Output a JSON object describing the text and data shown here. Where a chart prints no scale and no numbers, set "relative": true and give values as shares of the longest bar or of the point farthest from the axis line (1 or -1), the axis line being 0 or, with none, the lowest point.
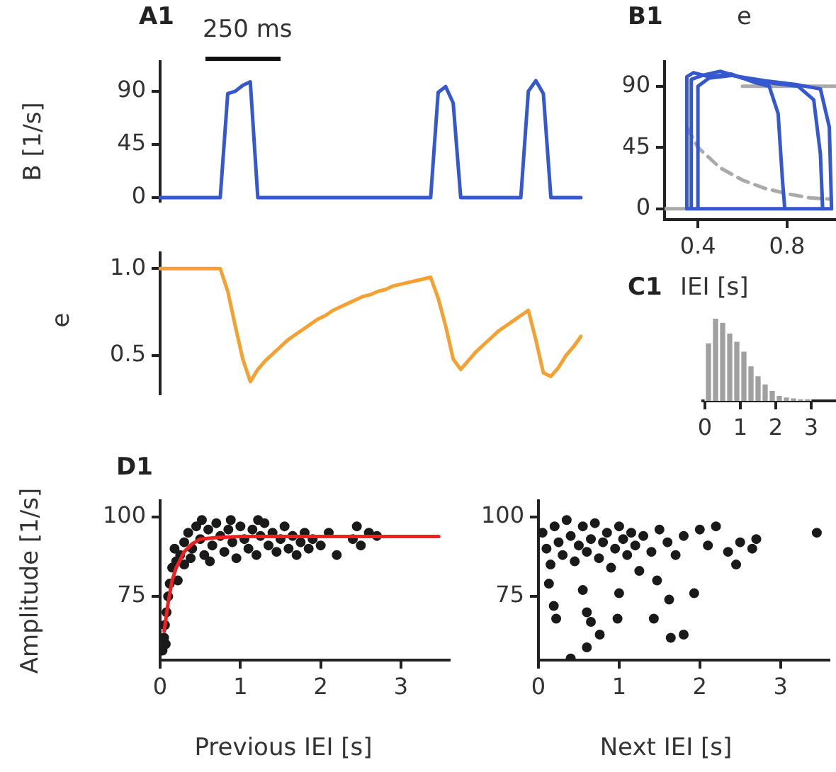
{
  "chart_data": [
    {
      "type": "line",
      "title": "A1",
      "ylabel": "B [1/s]",
      "annotations": [
        "250 ms"
      ],
      "color": "#3558d0",
      "tick_labels": "y",
      "ylim": [
        -3,
        115
      ],
      "yticks": [
        0,
        45,
        90
      ],
      "categories": [
        null,
        null,
        null,
        null,
        null,
        null,
        null,
        null,
        null,
        null,
        null,
        null,
        null,
        null,
        null,
        null,
        null,
        null,
        null,
        null,
        null,
        null,
        null,
        null,
        null,
        null,
        null,
        null,
        null,
        null,
        null,
        null,
        null,
        null,
        null,
        null,
        null,
        null,
        null,
        null,
        null,
        null,
        null,
        null,
        null,
        null,
        null,
        null,
        null,
        null,
        null,
        null,
        null,
        null,
        null,
        null,
        null
      ],
      "values": [
        0,
        0,
        0,
        0,
        0,
        0,
        0,
        0,
        0,
        88,
        90,
        95,
        98,
        0,
        0,
        0,
        0,
        0,
        0,
        0,
        0,
        0,
        0,
        0,
        0,
        0,
        0,
        0,
        0,
        0,
        0,
        0,
        0,
        0,
        0,
        0,
        0,
        89,
        94,
        80,
        0,
        0,
        0,
        0,
        0,
        0,
        0,
        0,
        0,
        90,
        99,
        88,
        0,
        0,
        0,
        0,
        0
      ]
    },
    {
      "type": "line",
      "ylabel": "e",
      "color": "#f5a030",
      "tick_labels": "y",
      "ylim": [
        0.28,
        1.09
      ],
      "yticks": [
        {
          "value": 0.5,
          "label": "0.5"
        },
        {
          "value": 1,
          "label": "1.0"
        }
      ],
      "categories": [
        null,
        null,
        null,
        null,
        null,
        null,
        null,
        null,
        null,
        null,
        null,
        null,
        null,
        null,
        null,
        null,
        null,
        null,
        null,
        null,
        null,
        null,
        null,
        null,
        null,
        null,
        null,
        null,
        null,
        null,
        null,
        null,
        null,
        null,
        null,
        null,
        null,
        null,
        null,
        null,
        null,
        null,
        null,
        null,
        null,
        null,
        null,
        null,
        null,
        null,
        null,
        null,
        null,
        null,
        null,
        null,
        null
      ],
      "values": [
        1,
        1,
        1,
        1,
        1,
        1,
        1,
        1,
        1,
        0.87,
        0.67,
        0.48,
        0.35,
        0.42,
        0.47,
        0.51,
        0.55,
        0.59,
        0.62,
        0.65,
        0.68,
        0.71,
        0.73,
        0.76,
        0.78,
        0.8,
        0.82,
        0.84,
        0.85,
        0.87,
        0.88,
        0.9,
        0.91,
        0.92,
        0.93,
        0.94,
        0.95,
        0.83,
        0.67,
        0.48,
        0.42,
        0.47,
        0.52,
        0.56,
        0.6,
        0.64,
        0.67,
        0.7,
        0.73,
        0.76,
        0.59,
        0.4,
        0.38,
        0.43,
        0.5,
        0.55,
        0.61
      ]
    },
    {
      "type": "line",
      "title": "B1",
      "xlabel": "e",
      "xlim": [
        0.25,
        1.02
      ],
      "ylim": [
        -8,
        108
      ],
      "xticks": [
        0.4,
        0.8
      ],
      "yticks": [
        0,
        45,
        90
      ],
      "series": [
        {
          "color": "#3558d0",
          "x": [
            0.35,
            0.35,
            0.38,
            0.45,
            0.55,
            0.65,
            0.72,
            0.76,
            0.78,
            0.79
          ],
          "values": [
            0,
            97,
            100,
            97,
            99,
            93,
            90,
            70,
            20,
            0
          ]
        },
        {
          "color": "#3558d0",
          "x": [
            0.37,
            0.37,
            0.42,
            0.5,
            0.6,
            0.7,
            0.85,
            0.92,
            0.95,
            0.96
          ],
          "values": [
            0,
            95,
            98,
            101,
            96,
            93,
            90,
            80,
            40,
            0
          ]
        },
        {
          "color": "#3558d0",
          "x": [
            0.4,
            0.4,
            0.45,
            0.55,
            0.7,
            0.85,
            0.95,
            0.99,
            1.0
          ],
          "values": [
            0,
            90,
            96,
            98,
            94,
            91,
            88,
            60,
            0
          ]
        },
        {
          "color": "#3558d0",
          "x": [
            0.35,
            1.0
          ],
          "values": [
            0,
            0
          ]
        },
        {
          "color": "#aaaaaa",
          "x": [
            0.6,
            1.02
          ],
          "values": [
            90,
            90
          ]
        },
        {
          "color": "#aaaaaa",
          "x": [
            0.25,
            0.35
          ],
          "values": [
            0,
            0
          ]
        },
        {
          "color": "#aaaaaa",
          "line_style": "dashed",
          "x": [
            0.35,
            0.4,
            0.5,
            0.6,
            0.7,
            0.8,
            0.9,
            1.0
          ],
          "values": [
            60,
            45,
            30,
            21,
            15,
            11,
            8,
            7
          ]
        }
      ]
    },
    {
      "type": "bar",
      "title": "C1",
      "xlabel": "IEI [s]",
      "relative": true,
      "color": "#a0a0a0",
      "xlim": [
        -0.06,
        3.7
      ],
      "xticks": [
        0,
        1,
        2,
        3
      ],
      "x": [
        0.1,
        0.3,
        0.5,
        0.7,
        0.9,
        1.1,
        1.3,
        1.5,
        1.7,
        1.9,
        2.1,
        2.3,
        2.5,
        2.7,
        2.9
      ],
      "values": [
        0.7,
        1,
        0.95,
        0.82,
        0.72,
        0.6,
        0.42,
        0.3,
        0.2,
        0.12,
        0.06,
        0.04,
        0.03,
        0.02,
        0.02
      ]
    },
    {
      "type": "scatter",
      "title": "D1",
      "xlabel": "Previous IEI [s]",
      "ylabel": "Amplitude [1/s]",
      "marker": "circle",
      "xlim": [
        0,
        3.6
      ],
      "ylim": [
        55,
        105
      ],
      "xticks": [
        0,
        1,
        2,
        3
      ],
      "yticks": [
        75,
        100
      ],
      "series": [
        {
          "color": "#1a1a1a",
          "x": [
            0.03,
            0.05,
            0.06,
            0.08,
            0.1,
            0.12,
            0.07,
            0.15,
            0.2,
            0.18,
            0.25,
            0.3,
            0.35,
            0.4,
            0.45,
            0.5,
            0.55,
            0.6,
            0.65,
            0.7,
            0.75,
            0.8,
            0.85,
            0.9,
            0.95,
            1.0,
            1.05,
            1.1,
            1.15,
            1.2,
            1.25,
            1.3,
            1.35,
            1.4,
            1.45,
            1.5,
            1.55,
            1.6,
            1.65,
            1.7,
            1.75,
            1.8,
            1.85,
            1.9,
            2.0,
            2.1,
            2.2,
            2.4,
            2.45,
            2.5,
            2.6,
            2.7,
            0.38,
            0.62,
            0.88,
            1.22,
            0.52,
            0.3,
            0.22
          ],
          "values": [
            58,
            62,
            66,
            70,
            75,
            79,
            60,
            84,
            86,
            90,
            88,
            92,
            95,
            90,
            97,
            93,
            88,
            96,
            91,
            98,
            94,
            89,
            96,
            92,
            87,
            97,
            93,
            90,
            96,
            88,
            94,
            98,
            91,
            95,
            89,
            93,
            97,
            90,
            94,
            88,
            92,
            95,
            90,
            93,
            91,
            95,
            88,
            93,
            97,
            91,
            95,
            94,
            87,
            86,
            99,
            99,
            99,
            85,
            80
          ]
        },
        {
          "type": "line",
          "marker": "none",
          "color": "#ee2020",
          "x": [
            0.05,
            0.1,
            0.15,
            0.2,
            0.3,
            0.4,
            0.5,
            0.7,
            1.0,
            3.47
          ],
          "values": [
            64,
            73,
            80,
            84,
            89,
            91.5,
            93,
            93.5,
            93.8,
            93.8
          ]
        }
      ]
    },
    {
      "type": "scatter",
      "xlabel": "Next IEI [s]",
      "marker": "circle",
      "xlim": [
        0,
        3.6
      ],
      "ylim": [
        55,
        105
      ],
      "xticks": [
        0,
        1,
        2,
        3
      ],
      "yticks": [
        75,
        100
      ],
      "color": "#1a1a1a",
      "x": [
        0.05,
        0.1,
        0.15,
        0.2,
        0.25,
        0.3,
        0.35,
        0.4,
        0.45,
        0.5,
        0.55,
        0.6,
        0.65,
        0.7,
        0.75,
        0.8,
        0.85,
        0.9,
        0.95,
        1.0,
        1.05,
        1.1,
        1.15,
        1.2,
        1.25,
        1.3,
        1.4,
        1.5,
        1.6,
        1.7,
        1.8,
        2.0,
        2.1,
        2.2,
        2.35,
        2.45,
        2.5,
        2.65,
        2.7,
        3.45,
        0.22,
        0.19,
        0.13,
        0.55,
        0.6,
        0.65,
        0.76,
        0.6,
        0.98,
        1.0,
        1.43,
        1.62,
        1.64,
        1.8,
        1.93,
        1.47,
        0.4
      ],
      "values": [
        95,
        90,
        85,
        97,
        92,
        88,
        99,
        94,
        86,
        91,
        97,
        89,
        93,
        98,
        87,
        92,
        95,
        84,
        90,
        97,
        93,
        88,
        95,
        91,
        83,
        94,
        89,
        96,
        92,
        88,
        94,
        96,
        91,
        97,
        89,
        85,
        92,
        90,
        93,
        95,
        68,
        72,
        79,
        77,
        70,
        67,
        63,
        59,
        68,
        76,
        68,
        74,
        62,
        63,
        76,
        80,
        55.5
      ]
    }
  ]
}
